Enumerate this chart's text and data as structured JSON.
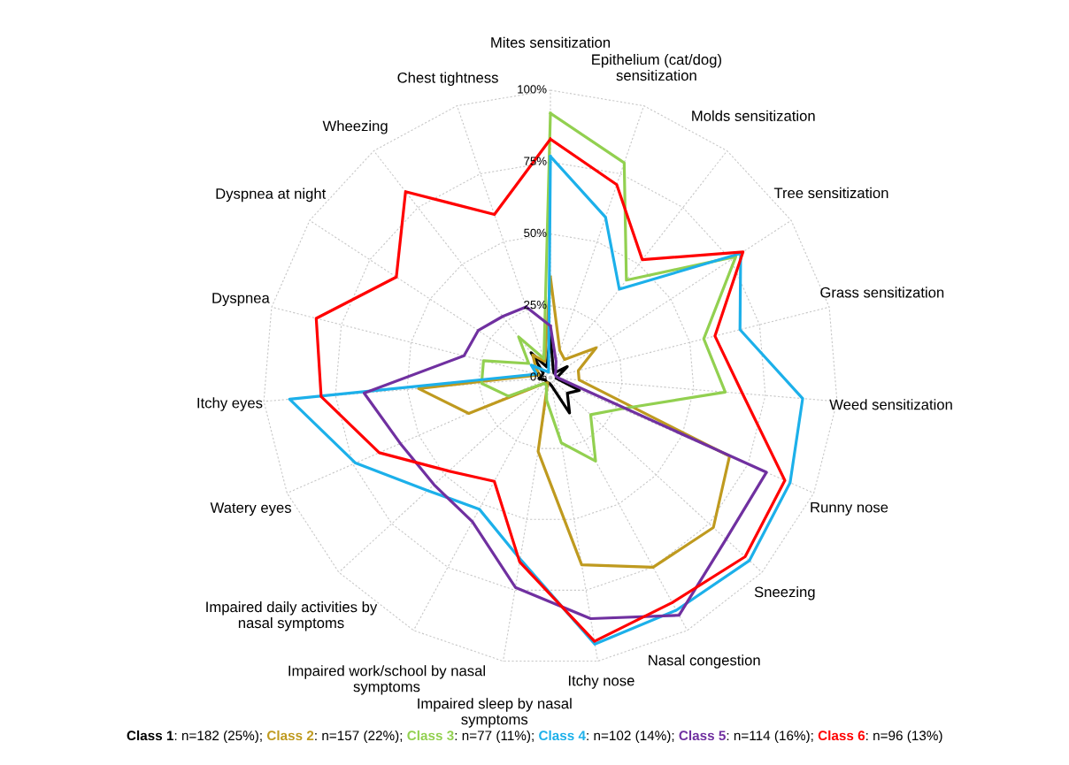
{
  "chart_data": {
    "type": "radar",
    "categories": [
      "Mites sensitization",
      "Epithelium (cat/dog)\nsensitization",
      "Molds sensitization",
      "Tree sensitization",
      "Grass sensitization",
      "Weed sensitization",
      "Runny nose",
      "Sneezing",
      "Nasal congestion",
      "Itchy nose",
      "Impaired sleep by nasal\nsymptoms",
      "Impaired work/school by nasal\nsymptoms",
      "Impaired daily activities by\nnasal symptoms",
      "Watery eyes",
      "Itchy eyes",
      "Dyspnea",
      "Dyspnea at night",
      "Wheezing",
      "Chest tightness"
    ],
    "series": [
      {
        "name": "Class 1",
        "color": "#000000",
        "values": [
          0.15,
          0.03,
          0.02,
          0.07,
          0.03,
          0.02,
          0.11,
          0.08,
          0.14,
          0.03,
          0.02,
          0.02,
          0.02,
          0.02,
          0.04,
          0.03,
          0.03,
          0.11,
          0.04
        ]
      },
      {
        "name": "Class 2",
        "color": "#bf9a1f",
        "values": [
          0.35,
          0.1,
          0.08,
          0.19,
          0.1,
          0.1,
          0.68,
          0.77,
          0.75,
          0.66,
          0.26,
          0.02,
          0.03,
          0.31,
          0.46,
          0.04,
          0.06,
          0.1,
          0.06
        ]
      },
      {
        "name": "Class 3",
        "color": "#92d050",
        "values": [
          0.92,
          0.79,
          0.43,
          0.77,
          0.55,
          0.61,
          0.27,
          0.19,
          0.33,
          0.23,
          0.08,
          0.03,
          0.03,
          0.16,
          0.24,
          0.24,
          0.09,
          0.18,
          0.07
        ]
      },
      {
        "name": "Class 4",
        "color": "#1cb0ea",
        "values": [
          0.77,
          0.59,
          0.39,
          0.79,
          0.68,
          0.88,
          0.91,
          0.94,
          0.92,
          0.94,
          0.64,
          0.52,
          0.58,
          0.74,
          0.91,
          0.05,
          0.08,
          0.03,
          0.02
        ]
      },
      {
        "name": "Class 5",
        "color": "#7030a0",
        "values": [
          0.18,
          0.06,
          0.03,
          0.02,
          0.02,
          0.03,
          0.82,
          0.83,
          0.94,
          0.85,
          0.74,
          0.57,
          0.55,
          0.57,
          0.65,
          0.31,
          0.3,
          0.27,
          0.26
        ]
      },
      {
        "name": "Class 6",
        "color": "#ff0000",
        "values": [
          0.83,
          0.71,
          0.52,
          0.8,
          0.59,
          0.67,
          0.89,
          0.92,
          0.89,
          0.93,
          0.65,
          0.41,
          0.48,
          0.65,
          0.8,
          0.84,
          0.64,
          0.82,
          0.6
        ]
      }
    ],
    "ylim": [
      0,
      1
    ],
    "yticks": [
      {
        "value": 0,
        "label": "0%"
      },
      {
        "value": 0.25,
        "label": "25%"
      },
      {
        "value": 0.5,
        "label": "50%"
      },
      {
        "value": 0.75,
        "label": "75%"
      },
      {
        "value": 1,
        "label": "100%"
      }
    ],
    "grid": true,
    "legend": "bottom",
    "annotations": [
      ": n=182 (25%); ",
      ": n=157 (22%); ",
      ": n=77 (11%); ",
      ": n=102 (14%); ",
      ": n=114 (16%); ",
      ": n=96 (13%)"
    ]
  }
}
